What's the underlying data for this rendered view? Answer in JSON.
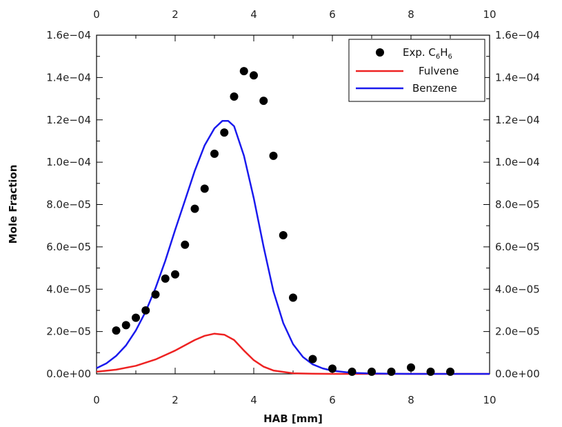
{
  "chart_data": {
    "type": "scatter",
    "xlabel": "HAB [mm]",
    "ylabel": "Mole Fraction",
    "xlim": [
      0,
      10
    ],
    "ylim": [
      0,
      0.00016
    ],
    "x_ticks": [
      0,
      2,
      4,
      6,
      8,
      10
    ],
    "x_tick_labels": [
      "0",
      "2",
      "4",
      "6",
      "8",
      "10"
    ],
    "y_ticks": [
      0,
      2e-05,
      4e-05,
      6e-05,
      8e-05,
      0.0001,
      0.00012,
      0.00014,
      0.00016
    ],
    "y_tick_labels": [
      "0.0e+00",
      "2.0e−05",
      "4.0e−05",
      "6.0e−05",
      "8.0e−05",
      "1.0e−04",
      "1.2e−04",
      "1.4e−04",
      "1.6e−04"
    ],
    "grid": false,
    "legend_position": "top-right",
    "legend": [
      {
        "label_parts": [
          "Exp. C",
          "6",
          "H",
          "6"
        ],
        "marker": "circle",
        "color": "#000000"
      },
      {
        "label": "Fulvene",
        "marker": "line",
        "color": "#ee2222"
      },
      {
        "label": "Benzene",
        "marker": "line",
        "color": "#1a1aee"
      }
    ],
    "series": [
      {
        "name": "Exp. C6H6",
        "type": "scatter",
        "color": "#000000",
        "x": [
          0.5,
          0.75,
          1.0,
          1.25,
          1.5,
          1.75,
          2.0,
          2.25,
          2.5,
          2.75,
          3.0,
          3.25,
          3.5,
          3.75,
          4.0,
          4.25,
          4.5,
          4.75,
          5.0,
          5.5,
          6.0,
          6.5,
          7.0,
          7.5,
          8.0,
          8.5,
          9.0
        ],
        "y": [
          2.05e-05,
          2.3e-05,
          2.65e-05,
          3e-05,
          3.75e-05,
          4.5e-05,
          4.7e-05,
          6.1e-05,
          7.8e-05,
          8.75e-05,
          0.000104,
          0.000114,
          0.000131,
          0.000143,
          0.000141,
          0.000129,
          0.000103,
          6.55e-05,
          3.6e-05,
          7e-06,
          2.5e-06,
          1e-06,
          1e-06,
          1e-06,
          3e-06,
          1e-06,
          1e-06
        ]
      },
      {
        "name": "Fulvene",
        "type": "line",
        "color": "#ee2222",
        "x": [
          0,
          0.5,
          1.0,
          1.5,
          2.0,
          2.5,
          2.75,
          3.0,
          3.25,
          3.5,
          3.75,
          4.0,
          4.25,
          4.5,
          5.0,
          5.5,
          6.0,
          7.0,
          8.0,
          10.0
        ],
        "y": [
          1e-06,
          2e-06,
          3.8e-06,
          6.8e-06,
          1.1e-05,
          1.6e-05,
          1.8e-05,
          1.9e-05,
          1.85e-05,
          1.6e-05,
          1.1e-05,
          6.5e-06,
          3.4e-06,
          1.6e-06,
          3e-07,
          1e-07,
          0,
          0,
          0,
          0
        ]
      },
      {
        "name": "Benzene",
        "type": "line",
        "color": "#1a1aee",
        "x": [
          0,
          0.25,
          0.5,
          0.75,
          1.0,
          1.25,
          1.5,
          1.75,
          2.0,
          2.25,
          2.5,
          2.75,
          3.0,
          3.2,
          3.35,
          3.5,
          3.75,
          4.0,
          4.25,
          4.5,
          4.75,
          5.0,
          5.25,
          5.5,
          5.75,
          6.0,
          6.5,
          7.0,
          7.5,
          8.0,
          9.0,
          10.0
        ],
        "y": [
          2.7e-06,
          5e-06,
          8.5e-06,
          1.35e-05,
          2.05e-05,
          2.95e-05,
          4.05e-05,
          5.35e-05,
          6.8e-05,
          8.2e-05,
          9.6e-05,
          0.000108,
          0.000116,
          0.0001195,
          0.0001195,
          0.000117,
          0.000103,
          8.3e-05,
          6e-05,
          3.9e-05,
          2.4e-05,
          1.4e-05,
          8e-06,
          4.5e-06,
          2.6e-06,
          1.5e-06,
          5e-07,
          2e-07,
          1e-07,
          0,
          0,
          0
        ]
      }
    ]
  }
}
